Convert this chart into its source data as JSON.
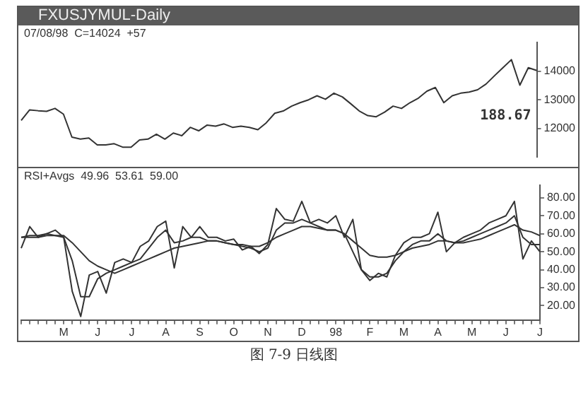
{
  "chart_data": [
    {
      "type": "line",
      "title": "FXUSJYMUL-Daily",
      "subtitle": "07/08/98  C=14024  +57",
      "annotations": [
        "188.67"
      ],
      "categories": [
        null,
        null,
        null,
        null,
        null,
        null,
        null,
        null,
        null,
        null,
        null,
        null,
        null,
        null,
        null,
        null,
        null,
        null,
        null,
        null,
        null,
        null,
        null,
        null,
        null,
        null,
        null,
        null,
        null,
        null,
        null,
        null,
        null,
        null,
        null,
        null,
        null,
        null,
        null,
        null,
        null,
        null,
        null,
        null,
        null,
        null,
        null,
        null,
        null,
        null,
        null,
        null,
        null,
        null,
        null,
        null,
        null,
        null,
        null,
        null,
        null,
        null
      ],
      "series": [
        {
          "color": "#333333",
          "values": [
            12280,
            12650,
            12620,
            12600,
            12700,
            12500,
            11700,
            11630,
            11670,
            11430,
            11430,
            11470,
            11350,
            11350,
            11600,
            11630,
            11800,
            11630,
            11840,
            11750,
            12040,
            11920,
            12120,
            12080,
            12160,
            12040,
            12080,
            12040,
            11960,
            12200,
            12530,
            12610,
            12780,
            12900,
            13000,
            13140,
            13020,
            13230,
            13100,
            12860,
            12610,
            12450,
            12410,
            12570,
            12780,
            12700,
            12900,
            13060,
            13300,
            13430,
            12900,
            13140,
            13230,
            13270,
            13350,
            13550,
            13840,
            14120,
            14400,
            13510,
            14120,
            14020
          ]
        }
      ],
      "ylim": [
        11000,
        15000
      ],
      "yticks": [
        12000,
        13000,
        14000
      ],
      "tick_labels": "y",
      "grid": false,
      "legend": false,
      "marker": "none",
      "line_style": "solid"
    },
    {
      "type": "line",
      "subtitle": "RSI+Avgs  49.96  53.61  59.00",
      "annotations": [
        "图 7-9  日线图"
      ],
      "categories": [
        null,
        null,
        null,
        null,
        null,
        "M",
        null,
        null,
        null,
        "J",
        null,
        null,
        null,
        "J",
        null,
        null,
        null,
        "A",
        null,
        null,
        null,
        "S",
        null,
        null,
        null,
        "O",
        null,
        null,
        null,
        "N",
        null,
        null,
        null,
        "D",
        null,
        null,
        null,
        "98",
        null,
        null,
        null,
        "F",
        null,
        null,
        null,
        "M",
        null,
        null,
        null,
        "A",
        null,
        null,
        null,
        "M",
        null,
        null,
        null,
        "J",
        null,
        null,
        null,
        "J"
      ],
      "series": [
        {
          "color": "#333333",
          "values": [
            52,
            64,
            58,
            60,
            62,
            58,
            28,
            14,
            37,
            39,
            27,
            44,
            46,
            44,
            53,
            56,
            64,
            67,
            41,
            64,
            58,
            64,
            58,
            58,
            56,
            57,
            51,
            53,
            49,
            54,
            74,
            68,
            67,
            78,
            66,
            68,
            66,
            70,
            58,
            68,
            40,
            34,
            38,
            36,
            48,
            55,
            58,
            58,
            60,
            72,
            50,
            55,
            58,
            60,
            62,
            66,
            68,
            70,
            78,
            46,
            56,
            50
          ]
        },
        {
          "color": "#333333",
          "values": [
            58,
            59,
            59,
            60,
            59,
            58,
            45,
            25,
            25,
            35,
            38,
            40,
            42,
            44,
            46,
            52,
            58,
            62,
            55,
            56,
            58,
            58,
            56,
            56,
            55,
            54,
            53,
            52,
            50,
            52,
            62,
            66,
            66,
            68,
            66,
            64,
            62,
            62,
            60,
            50,
            40,
            36,
            36,
            38,
            45,
            50,
            54,
            56,
            56,
            60,
            56,
            55,
            56,
            58,
            60,
            62,
            64,
            66,
            70,
            58,
            54,
            54
          ]
        },
        {
          "color": "#333333",
          "values": [
            58,
            58,
            58,
            59,
            59,
            59,
            55,
            50,
            45,
            42,
            40,
            38,
            40,
            42,
            44,
            46,
            48,
            50,
            52,
            53,
            54,
            55,
            56,
            56,
            55,
            54,
            54,
            53,
            53,
            55,
            58,
            60,
            62,
            64,
            64,
            63,
            62,
            62,
            60,
            56,
            52,
            48,
            47,
            47,
            48,
            50,
            52,
            53,
            54,
            56,
            56,
            55,
            55,
            56,
            57,
            59,
            61,
            63,
            65,
            62,
            61,
            59
          ]
        }
      ],
      "ylim": [
        12,
        87
      ],
      "yticks": [
        {
          "value": 20,
          "label": "20.00"
        },
        {
          "value": 30,
          "label": "30.00"
        },
        {
          "value": 40,
          "label": "40.00"
        },
        {
          "value": 50,
          "label": "50.00"
        },
        {
          "value": 60,
          "label": "60.00"
        },
        {
          "value": 70,
          "label": "70.00"
        },
        {
          "value": 80,
          "label": "80.00"
        }
      ],
      "grid": false,
      "legend": false,
      "marker": "none",
      "line_style": "solid"
    }
  ]
}
